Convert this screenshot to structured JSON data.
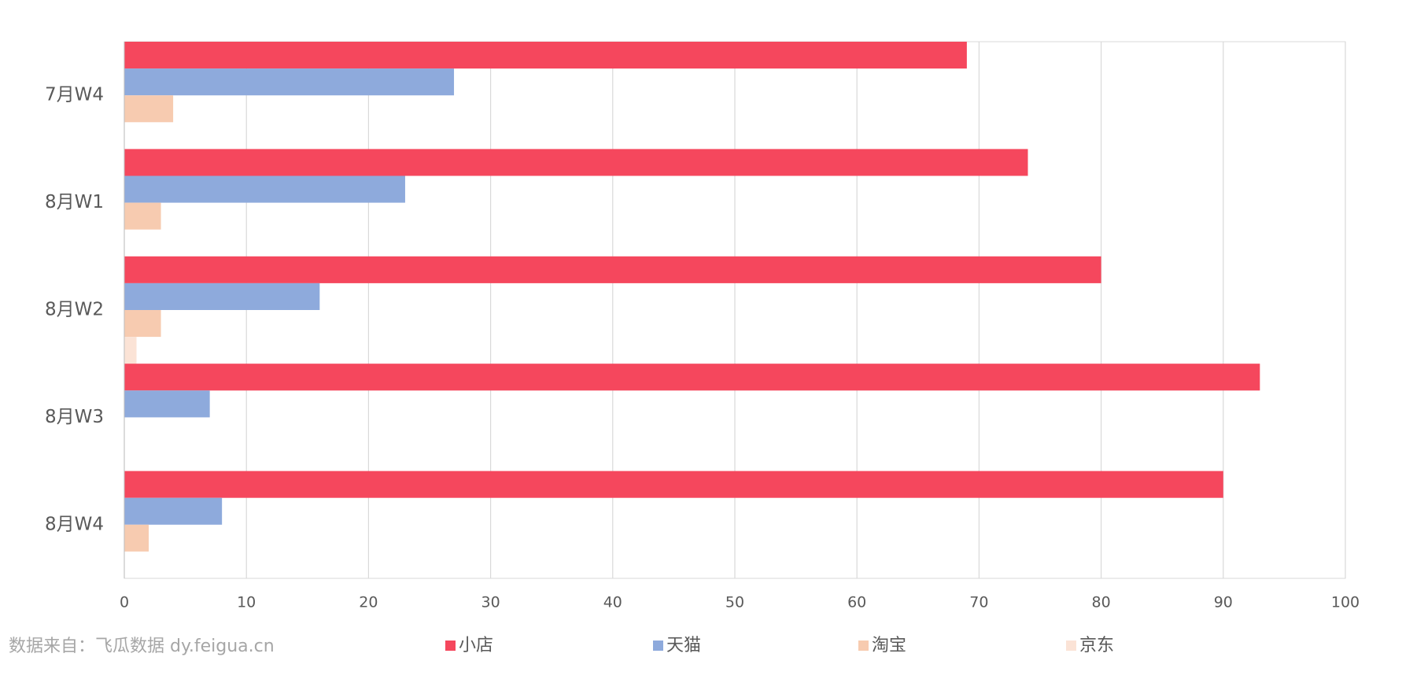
{
  "chart_data": {
    "type": "hbar",
    "categories": [
      "7月W4",
      "8月W1",
      "8月W2",
      "8月W3",
      "8月W4"
    ],
    "series": [
      {
        "name": "小店",
        "color": "#f5475d",
        "values": [
          69,
          74,
          80,
          93,
          90
        ]
      },
      {
        "name": "天猫",
        "color": "#8eaadc",
        "values": [
          27,
          23,
          16,
          7,
          8
        ]
      },
      {
        "name": "淘宝",
        "color": "#f7cbb0",
        "values": [
          4,
          3,
          3,
          0,
          2
        ]
      },
      {
        "name": "京东",
        "color": "#fbe3d6",
        "values": [
          0,
          0,
          1,
          0,
          0
        ]
      }
    ],
    "xlim": [
      0,
      100
    ],
    "xticks": [
      0,
      10,
      20,
      30,
      40,
      50,
      60,
      70,
      80,
      90,
      100
    ],
    "grid": true,
    "source": "数据来自：飞瓜数据  dy.feigua.cn"
  }
}
